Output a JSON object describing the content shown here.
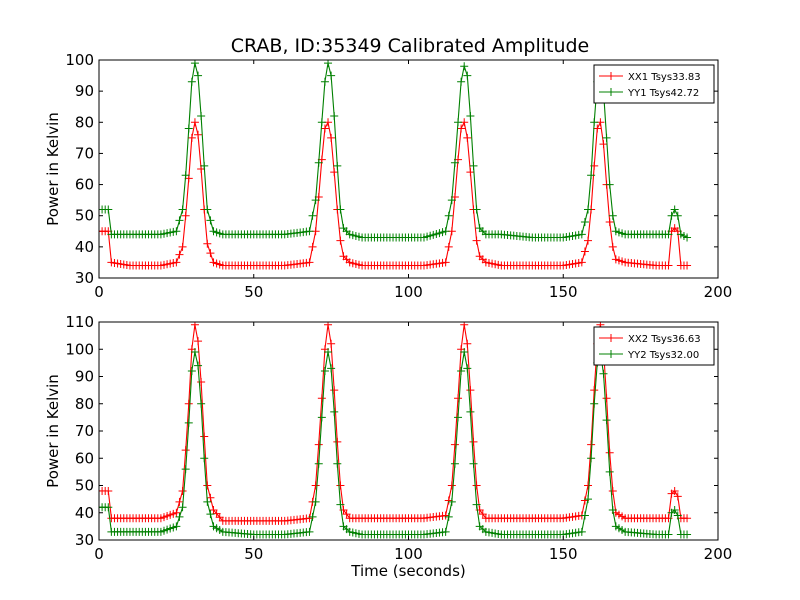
{
  "title": "CRAB, ID:35349 Calibrated Amplitude",
  "colors": {
    "red": "#ff0000",
    "green": "#008000"
  },
  "chart_data": [
    {
      "type": "line",
      "xlabel": "",
      "ylabel": "Power in Kelvin",
      "xlim": [
        0,
        200
      ],
      "ylim": [
        30,
        100
      ],
      "xticks": [
        0,
        50,
        100,
        150,
        200
      ],
      "yticks": [
        30,
        40,
        50,
        60,
        70,
        80,
        90,
        100
      ],
      "legend_position": "top-right",
      "marker": "+",
      "series": [
        {
          "name": "XX1 Tsys33.83",
          "color": "#ff0000",
          "x": [
            0,
            2,
            3,
            4,
            10,
            20,
            25,
            27,
            28,
            29,
            30,
            31,
            32,
            33,
            34,
            35,
            37,
            40,
            50,
            60,
            68,
            70,
            71,
            72,
            73,
            74,
            75,
            76,
            77,
            78,
            79,
            81,
            85,
            95,
            105,
            112,
            114,
            115,
            116,
            117,
            118,
            119,
            120,
            121,
            122,
            123,
            125,
            130,
            140,
            150,
            156,
            158,
            159,
            160,
            161,
            162,
            163,
            164,
            165,
            166,
            167,
            170,
            180,
            184,
            185,
            186,
            187,
            188,
            190
          ],
          "y": [
            45,
            45,
            45,
            35,
            34,
            34,
            35,
            40,
            50,
            62,
            75,
            80,
            76,
            65,
            52,
            41,
            35,
            34,
            34,
            34,
            35,
            45,
            56,
            68,
            78,
            80,
            75,
            64,
            52,
            42,
            37,
            35,
            34,
            34,
            34,
            35,
            45,
            56,
            68,
            78,
            80,
            75,
            64,
            52,
            42,
            37,
            35,
            34,
            34,
            34,
            35,
            42,
            52,
            66,
            78,
            80,
            73,
            60,
            48,
            40,
            36,
            35,
            34,
            34,
            45,
            46,
            45,
            34,
            34
          ]
        },
        {
          "name": "YY1 Tsys42.72",
          "color": "#008000",
          "x": [
            0,
            2,
            3,
            4,
            10,
            20,
            25,
            27,
            28,
            29,
            30,
            31,
            32,
            33,
            34,
            35,
            37,
            40,
            50,
            60,
            68,
            70,
            71,
            72,
            73,
            74,
            75,
            76,
            77,
            78,
            79,
            81,
            85,
            95,
            105,
            112,
            114,
            115,
            116,
            117,
            118,
            119,
            120,
            121,
            122,
            123,
            125,
            130,
            140,
            150,
            156,
            158,
            159,
            160,
            161,
            162,
            163,
            164,
            165,
            166,
            167,
            170,
            180,
            184,
            185,
            186,
            187,
            188,
            190
          ],
          "y": [
            52,
            52,
            52,
            44,
            44,
            44,
            45,
            52,
            63,
            78,
            93,
            99,
            95,
            82,
            66,
            52,
            45,
            44,
            44,
            44,
            45,
            55,
            67,
            80,
            93,
            99,
            95,
            82,
            66,
            52,
            46,
            44,
            43,
            43,
            43,
            45,
            55,
            67,
            80,
            93,
            98,
            95,
            82,
            66,
            52,
            46,
            44,
            44,
            43,
            43,
            44,
            52,
            63,
            80,
            93,
            96,
            90,
            75,
            60,
            50,
            45,
            44,
            44,
            44,
            50,
            52,
            50,
            44,
            43
          ]
        }
      ]
    },
    {
      "type": "line",
      "xlabel": "Time (seconds)",
      "ylabel": "Power in Kelvin",
      "xlim": [
        0,
        200
      ],
      "ylim": [
        30,
        110
      ],
      "xticks": [
        0,
        50,
        100,
        150,
        200
      ],
      "yticks": [
        30,
        40,
        50,
        60,
        70,
        80,
        90,
        100,
        110
      ],
      "legend_position": "top-right",
      "marker": "+",
      "series": [
        {
          "name": "XX2 Tsys36.63",
          "color": "#ff0000",
          "x": [
            0,
            2,
            3,
            4,
            10,
            20,
            25,
            27,
            28,
            29,
            30,
            31,
            32,
            33,
            34,
            35,
            37,
            40,
            50,
            60,
            68,
            70,
            71,
            72,
            73,
            74,
            75,
            76,
            77,
            78,
            79,
            81,
            85,
            95,
            105,
            112,
            114,
            115,
            116,
            117,
            118,
            119,
            120,
            121,
            122,
            123,
            125,
            130,
            140,
            150,
            156,
            158,
            159,
            160,
            161,
            162,
            163,
            164,
            165,
            166,
            167,
            170,
            180,
            184,
            185,
            186,
            187,
            188,
            190
          ],
          "y": [
            48,
            48,
            48,
            38,
            38,
            38,
            40,
            48,
            63,
            80,
            100,
            109,
            103,
            88,
            68,
            50,
            41,
            37,
            37,
            37,
            38,
            50,
            65,
            82,
            100,
            109,
            102,
            85,
            66,
            50,
            41,
            38,
            38,
            38,
            38,
            39,
            50,
            65,
            82,
            100,
            109,
            102,
            85,
            66,
            50,
            41,
            38,
            38,
            38,
            38,
            39,
            50,
            65,
            85,
            102,
            109,
            100,
            82,
            62,
            48,
            40,
            38,
            38,
            38,
            47,
            48,
            46,
            38,
            38
          ]
        },
        {
          "name": "YY2 Tsys32.00",
          "color": "#008000",
          "x": [
            0,
            2,
            3,
            4,
            10,
            20,
            25,
            27,
            28,
            29,
            30,
            31,
            32,
            33,
            34,
            35,
            37,
            40,
            50,
            60,
            68,
            70,
            71,
            72,
            73,
            74,
            75,
            76,
            77,
            78,
            79,
            81,
            85,
            95,
            105,
            112,
            114,
            115,
            116,
            117,
            118,
            119,
            120,
            121,
            122,
            123,
            125,
            130,
            140,
            150,
            156,
            158,
            159,
            160,
            161,
            162,
            163,
            164,
            165,
            166,
            167,
            170,
            180,
            184,
            185,
            186,
            187,
            188,
            190
          ],
          "y": [
            42,
            42,
            42,
            33,
            33,
            33,
            35,
            42,
            56,
            73,
            92,
            99,
            94,
            80,
            60,
            44,
            35,
            33,
            32,
            32,
            33,
            44,
            58,
            75,
            92,
            99,
            93,
            77,
            58,
            43,
            35,
            33,
            32,
            32,
            32,
            33,
            44,
            58,
            75,
            92,
            99,
            93,
            77,
            58,
            43,
            35,
            33,
            32,
            32,
            32,
            33,
            45,
            60,
            80,
            95,
            99,
            91,
            74,
            55,
            41,
            35,
            33,
            32,
            32,
            40,
            41,
            39,
            32,
            32
          ]
        }
      ]
    }
  ]
}
